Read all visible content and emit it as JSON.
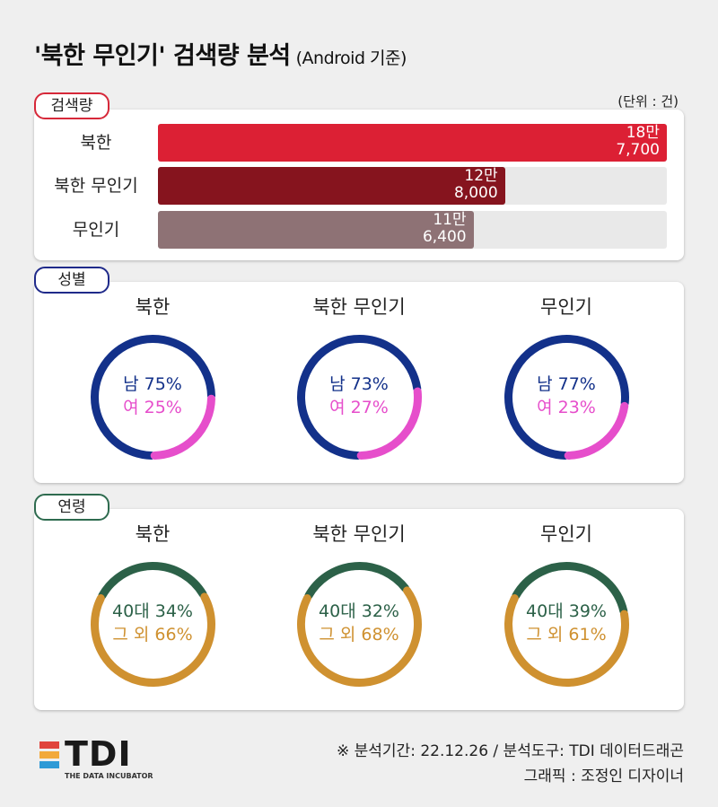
{
  "title": {
    "main": "'북한 무인기' 검색량 분석",
    "sub": "(Android 기준)"
  },
  "sections": {
    "volume": {
      "tag": "검색량",
      "color": "#d62839",
      "unit": "(단위 : 건)"
    },
    "gender": {
      "tag": "성별",
      "color": "#1f2a8a"
    },
    "age": {
      "tag": "연령",
      "color": "#2e6b4f"
    }
  },
  "chart_data": [
    {
      "type": "bar",
      "title": "검색량",
      "categories": [
        "북한",
        "북한 무인기",
        "무인기"
      ],
      "values": [
        187700,
        128000,
        116400
      ],
      "value_labels": [
        "18만\n7,700",
        "12만\n8,000",
        "11만\n6,400"
      ],
      "colors": [
        "#dc2034",
        "#86141e",
        "#8e7275"
      ],
      "ylim": [
        0,
        187700
      ]
    },
    {
      "type": "pie",
      "title": "성별",
      "charts": [
        {
          "name": "북한",
          "labels": [
            "남 75%",
            "여 25%"
          ],
          "values": [
            75,
            25
          ]
        },
        {
          "name": "북한 무인기",
          "labels": [
            "남 73%",
            "여 27%"
          ],
          "values": [
            73,
            27
          ]
        },
        {
          "name": "무인기",
          "labels": [
            "남 77%",
            "여 23%"
          ],
          "values": [
            77,
            23
          ]
        }
      ],
      "colors": [
        "#13318a",
        "#e64ecb"
      ]
    },
    {
      "type": "pie",
      "title": "연령",
      "charts": [
        {
          "name": "북한",
          "labels": [
            "40대 34%",
            "그 외 66%"
          ],
          "values": [
            34,
            66
          ]
        },
        {
          "name": "북한 무인기",
          "labels": [
            "40대 32%",
            "그 외 68%"
          ],
          "values": [
            32,
            68
          ]
        },
        {
          "name": "무인기",
          "labels": [
            "40대 39%",
            "그 외 61%"
          ],
          "values": [
            39,
            61
          ]
        }
      ],
      "colors": [
        "#2c6148",
        "#cf9130"
      ]
    }
  ],
  "footer": {
    "line1": "※ 분석기간: 22.12.26 / 분석도구: TDI 데이터드래곤",
    "line2": "그래픽 : 조정인 디자이너"
  },
  "logo": {
    "text": "TDI",
    "sub": "THE DATA INCUBATOR",
    "colors": [
      "#e0443c",
      "#f2a93b",
      "#2f9ad6"
    ]
  }
}
